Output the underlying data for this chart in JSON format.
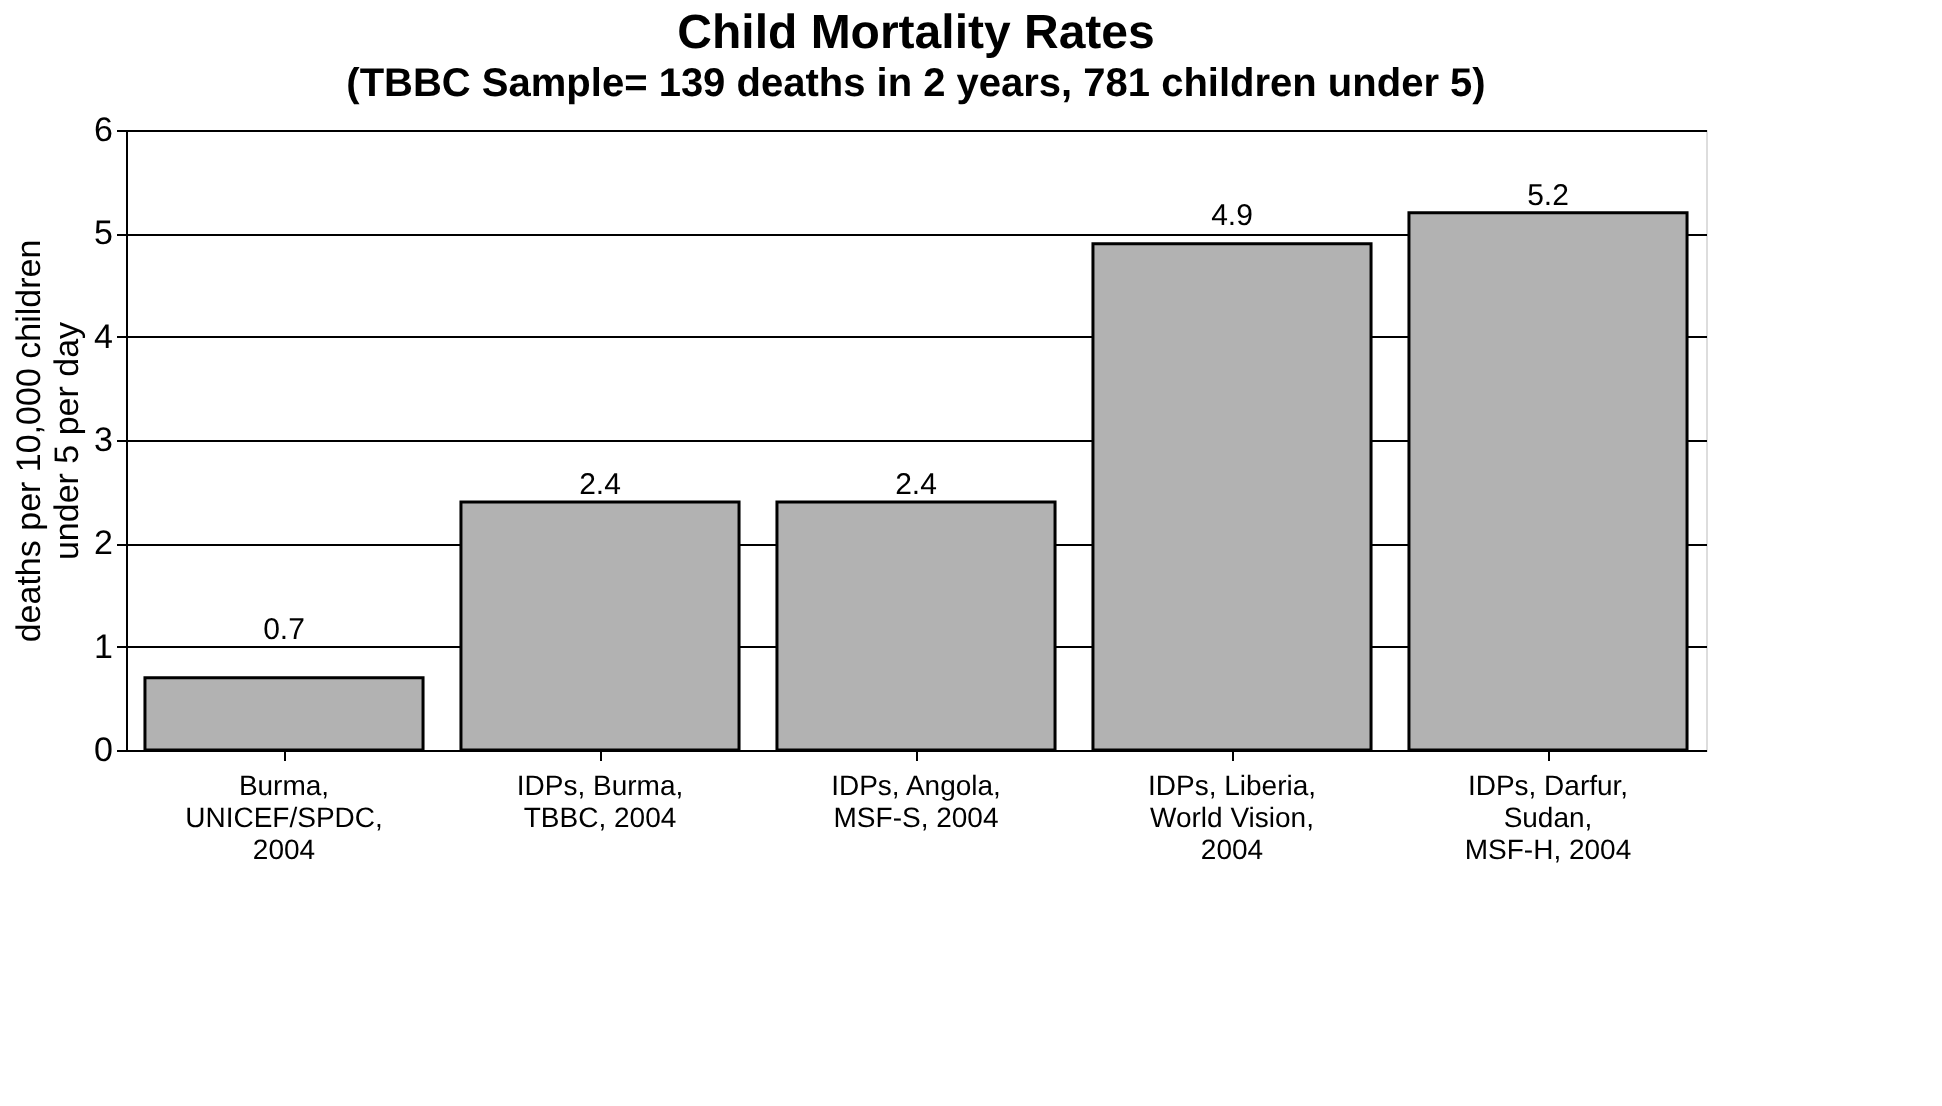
{
  "chart_data": {
    "type": "bar",
    "title": "Child Mortality Rates",
    "subtitle": "(TBBC Sample= 139 deaths in 2 years, 781 children under 5)",
    "ylabel": "deaths per 10,000 children under 5 per day",
    "categories": [
      "Burma,\nUNICEF/SPDC,\n2004",
      "IDPs, Burma,\nTBBC, 2004",
      "IDPs, Angola,\nMSF-S, 2004",
      "IDPs, Liberia,\nWorld Vision,\n2004",
      "IDPs, Darfur,\nSudan,\nMSF-H, 2004"
    ],
    "values": [
      0.7,
      2.4,
      2.4,
      4.9,
      5.2
    ],
    "color": "#b2b2b2",
    "data_labels": true,
    "ylim": [
      0,
      6
    ],
    "yticks": [
      0,
      1,
      2,
      3,
      4,
      5,
      6
    ],
    "grid": "y"
  }
}
